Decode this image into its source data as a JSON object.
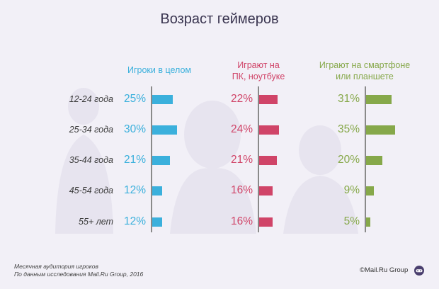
{
  "chart_data": {
    "type": "bar",
    "title": "Возраст геймеров",
    "categories": [
      "12-24 года",
      "25-34 года",
      "35-44 года",
      "45-54 года",
      "55+ лет"
    ],
    "series": [
      {
        "name": "Игроки в целом",
        "values": [
          25,
          30,
          21,
          12,
          12
        ],
        "labels": [
          "25%",
          "30%",
          "21%",
          "12%",
          "12%"
        ],
        "color": "#3bb0dc"
      },
      {
        "name": "Играют на ПК, ноутбуке",
        "values": [
          22,
          24,
          21,
          16,
          16
        ],
        "labels": [
          "22%",
          "24%",
          "21%",
          "16%",
          "16%"
        ],
        "color": "#d04468"
      },
      {
        "name": "Играют на смартфоне или планшете",
        "values": [
          31,
          35,
          20,
          9,
          5
        ],
        "labels": [
          "31%",
          "35%",
          "20%",
          "9%",
          "5%"
        ],
        "color": "#86a84a"
      }
    ],
    "orientation": "horizontal",
    "grid": false
  },
  "header": {
    "col1": [
      "Игроки в целом"
    ],
    "col2": [
      "Играют на",
      "ПК, ноутбуке"
    ],
    "col3": [
      "Играют на смартфоне",
      "или планшете"
    ]
  },
  "footer": {
    "line1": "Месячная аудитория игроков",
    "line2": "По данным исследования Mail.Ru Group, 2016",
    "brand": "©Mail.Ru Group",
    "brand_icon": "gamepad-icon"
  }
}
